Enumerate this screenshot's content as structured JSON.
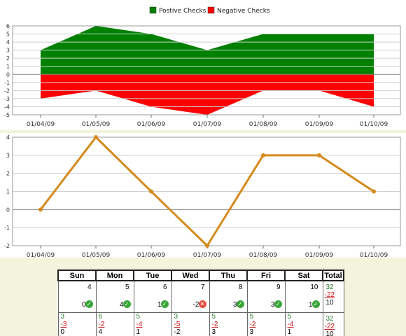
{
  "chart_data": [
    {
      "type": "area",
      "categories": [
        "01/04/09",
        "01/05/09",
        "01/06/09",
        "01/07/09",
        "01/08/09",
        "01/09/09",
        "01/10/09"
      ],
      "series": [
        {
          "name": "Postive Checks",
          "values": [
            3,
            6,
            5,
            3,
            5,
            5,
            5
          ],
          "color": "#008000"
        },
        {
          "name": "Negative Checks",
          "values": [
            -3,
            -2,
            -4,
            -5,
            -2,
            -2,
            -4
          ],
          "color": "#ff0000"
        }
      ],
      "ylim": [
        -5,
        6
      ],
      "yticks": [
        6,
        5,
        4,
        3,
        2,
        1,
        0,
        -1,
        -2,
        -3,
        -4,
        -5
      ],
      "legend": "top-center",
      "grid": true
    },
    {
      "type": "line",
      "categories": [
        "01/04/09",
        "01/05/09",
        "01/06/09",
        "01/07/09",
        "01/08/09",
        "01/09/09",
        "01/10/09"
      ],
      "series": [
        {
          "values": [
            0,
            4,
            1,
            -2,
            3,
            3,
            1
          ],
          "color": "#d48a1c"
        }
      ],
      "ylim": [
        -2,
        4
      ],
      "yticks": [
        4,
        3,
        2,
        1,
        0,
        -1,
        -2
      ],
      "grid": true
    }
  ],
  "calendar": {
    "headers": [
      "Sun",
      "Mon",
      "Tue",
      "Wed",
      "Thu",
      "Fri",
      "Sat",
      "Total"
    ],
    "week1": [
      {
        "day": "4",
        "net": "0",
        "status": "ok"
      },
      {
        "day": "5",
        "net": "4",
        "status": "ok"
      },
      {
        "day": "6",
        "net": "1",
        "status": "ok"
      },
      {
        "day": "7",
        "net": "-2",
        "status": "bad"
      },
      {
        "day": "8",
        "net": "3",
        "status": "ok"
      },
      {
        "day": "9",
        "net": "3",
        "status": "ok"
      },
      {
        "day": "10",
        "net": "1",
        "status": "ok"
      }
    ],
    "week1_total": {
      "pos": "32",
      "neg": "-22",
      "net": "10"
    },
    "week2": [
      {
        "pos": "3",
        "neg": "-3",
        "net": "0"
      },
      {
        "pos": "6",
        "neg": "-2",
        "net": "4"
      },
      {
        "pos": "5",
        "neg": "-4",
        "net": "1"
      },
      {
        "pos": "3",
        "neg": "-5",
        "net": "-2"
      },
      {
        "pos": "5",
        "neg": "-2",
        "net": "3"
      },
      {
        "pos": "5",
        "neg": "-2",
        "net": "3"
      },
      {
        "pos": "5",
        "neg": "-4",
        "net": "1"
      }
    ],
    "week2_total": {
      "pos": "32",
      "neg": "-22",
      "net": "10"
    },
    "status_icons": {
      "ok": "check-circle-icon",
      "bad": "x-circle-icon"
    }
  }
}
